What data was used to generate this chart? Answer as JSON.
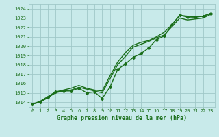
{
  "title": "Graphe pression niveau de la mer (hPa)",
  "bg_color": "#c8eaea",
  "grid_color": "#a0c8c8",
  "line_color": "#1a6e1a",
  "xlim": [
    -0.5,
    23.5
  ],
  "ylim": [
    1013.5,
    1024.5
  ],
  "yticks": [
    1014,
    1015,
    1016,
    1017,
    1018,
    1019,
    1020,
    1021,
    1022,
    1023,
    1024
  ],
  "xticks": [
    0,
    1,
    2,
    3,
    4,
    5,
    6,
    7,
    8,
    9,
    10,
    11,
    12,
    13,
    14,
    15,
    16,
    17,
    18,
    19,
    20,
    21,
    22,
    23
  ],
  "series": [
    {
      "x": [
        0,
        1,
        2,
        3,
        4,
        5,
        6,
        7,
        8,
        9,
        10,
        11,
        12,
        13,
        14,
        15,
        16,
        17,
        18,
        19,
        20,
        21,
        22,
        23
      ],
      "y": [
        1013.8,
        1014.0,
        1014.5,
        1015.1,
        1015.2,
        1015.2,
        1015.5,
        1015.0,
        1015.1,
        1014.4,
        1015.6,
        1017.5,
        1018.1,
        1018.8,
        1019.2,
        1019.8,
        1020.7,
        1021.1,
        1022.3,
        1023.3,
        1023.1,
        1023.1,
        1023.2,
        1023.5
      ],
      "marker": true,
      "lw": 1.0
    },
    {
      "x": [
        0,
        1,
        2,
        3,
        4,
        5,
        6,
        7,
        8,
        9,
        10,
        11,
        12,
        13,
        14,
        15,
        16,
        17,
        18,
        19,
        20,
        21,
        22,
        23
      ],
      "y": [
        1013.8,
        1014.1,
        1014.6,
        1015.1,
        1015.3,
        1015.5,
        1015.8,
        1015.5,
        1015.3,
        1015.2,
        1016.8,
        1018.3,
        1019.3,
        1020.1,
        1020.4,
        1020.6,
        1021.0,
        1021.5,
        1022.3,
        1023.3,
        1023.2,
        1023.1,
        1023.2,
        1023.5
      ],
      "marker": false,
      "lw": 1.0
    },
    {
      "x": [
        0,
        1,
        2,
        3,
        4,
        5,
        6,
        7,
        8,
        9,
        10,
        11,
        12,
        13,
        14,
        15,
        16,
        17,
        18,
        19,
        20,
        21,
        22,
        23
      ],
      "y": [
        1013.8,
        1014.0,
        1014.5,
        1015.0,
        1015.2,
        1015.3,
        1015.6,
        1015.4,
        1015.2,
        1015.0,
        1016.5,
        1018.0,
        1018.9,
        1019.9,
        1020.2,
        1020.5,
        1020.9,
        1021.2,
        1022.1,
        1023.0,
        1022.8,
        1022.9,
        1023.0,
        1023.4
      ],
      "marker": false,
      "lw": 1.0
    }
  ],
  "tick_fontsize": 5,
  "label_fontsize": 6
}
